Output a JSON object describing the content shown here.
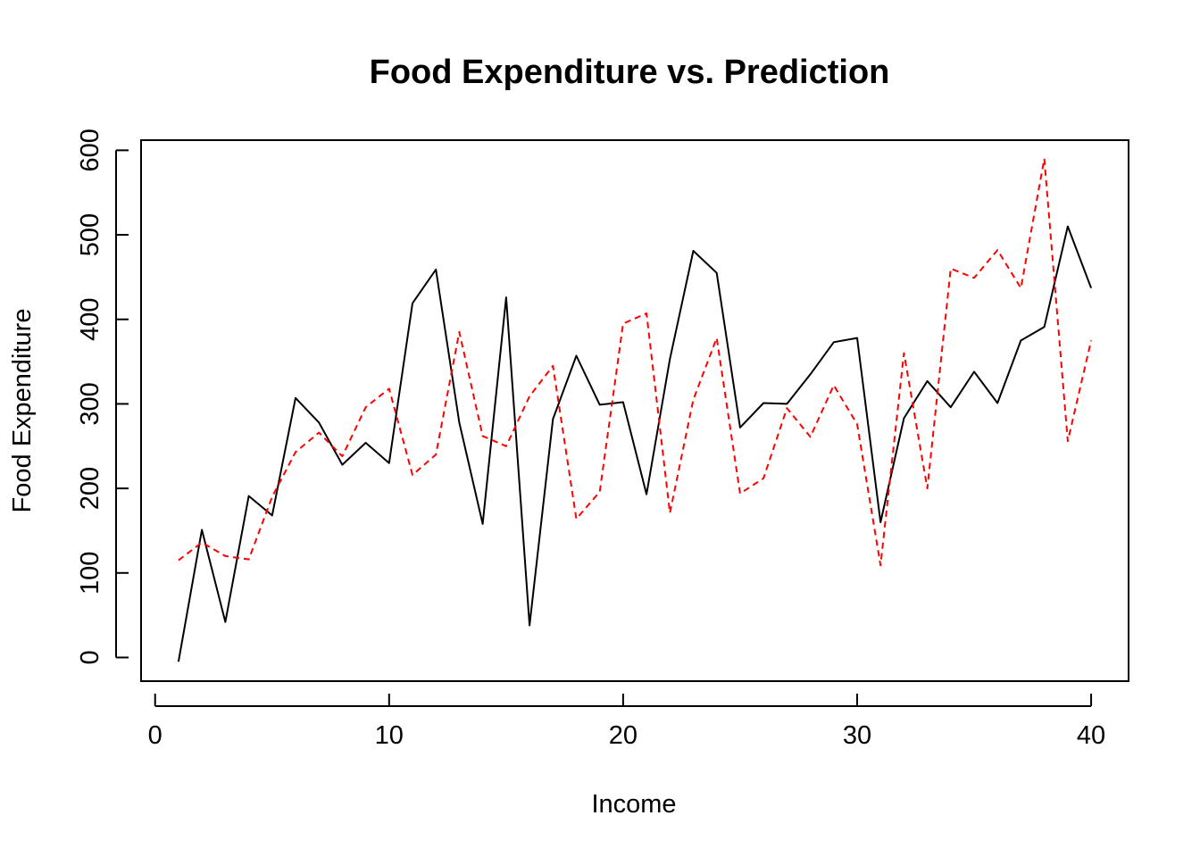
{
  "chart_data": {
    "type": "line",
    "title": "Food Expenditure vs. Prediction",
    "xlabel": "Income",
    "ylabel": "Food Expenditure",
    "xlim": [
      -0.6,
      41.6
    ],
    "ylim": [
      -28,
      612
    ],
    "x_ticks": [
      0,
      10,
      20,
      30,
      40
    ],
    "y_ticks": [
      0,
      100,
      200,
      300,
      400,
      500,
      600
    ],
    "grid": false,
    "legend": "none",
    "x": [
      1,
      2,
      3,
      4,
      5,
      6,
      7,
      8,
      9,
      10,
      11,
      12,
      13,
      14,
      15,
      16,
      17,
      18,
      19,
      20,
      21,
      22,
      23,
      24,
      25,
      26,
      27,
      28,
      29,
      30,
      31,
      32,
      33,
      34,
      35,
      36,
      37,
      38,
      39,
      40
    ],
    "series": [
      {
        "color": "#000000",
        "line_style": "solid",
        "values": [
          -5,
          151,
          42,
          191,
          168,
          307,
          278,
          228,
          254,
          230,
          419,
          459,
          278,
          158,
          426,
          38,
          282,
          357,
          299,
          302,
          193,
          353,
          481,
          455,
          272,
          301,
          300,
          335,
          373,
          378,
          160,
          283,
          327,
          296,
          338,
          301,
          375,
          391,
          510,
          437
        ]
      },
      {
        "color": "#ff0000",
        "line_style": "dashed",
        "values": [
          115,
          136,
          120,
          116,
          190,
          243,
          266,
          238,
          296,
          318,
          216,
          240,
          385,
          262,
          250,
          309,
          345,
          164,
          196,
          395,
          407,
          171,
          305,
          378,
          194,
          212,
          295,
          261,
          322,
          276,
          109,
          360,
          200,
          460,
          449,
          482,
          437,
          590,
          256,
          375
        ]
      }
    ]
  }
}
